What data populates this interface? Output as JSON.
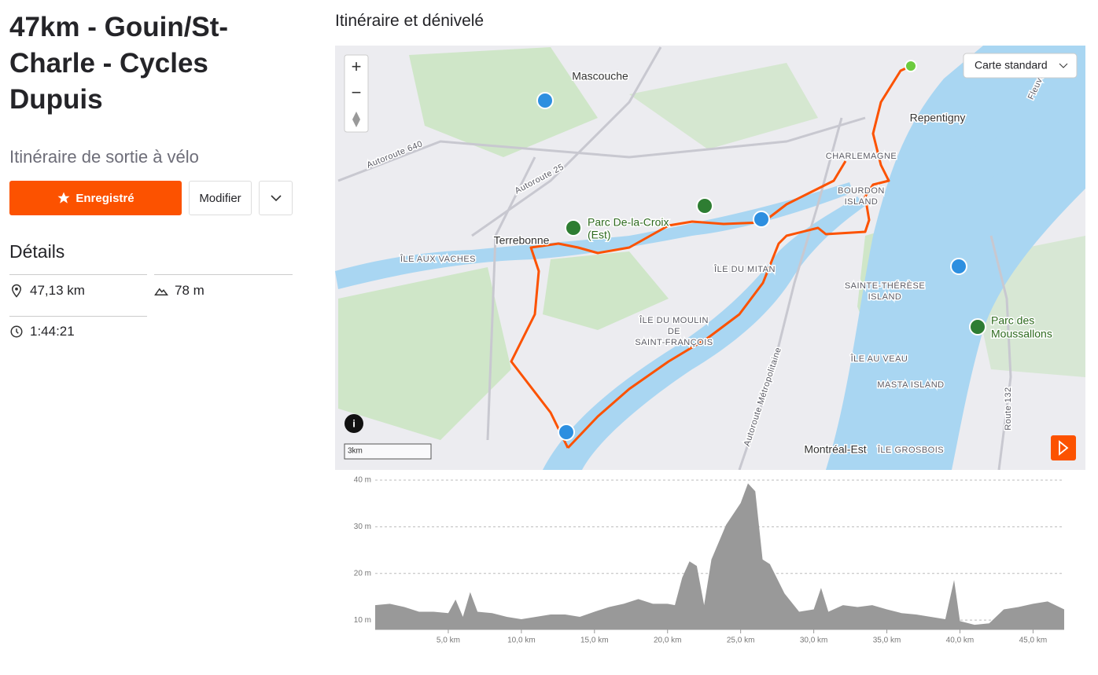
{
  "header": {
    "title": "47km - Gouin/St-Charle - Cycles Dupuis",
    "subtitle": "Itinéraire de sortie à vélo"
  },
  "actions": {
    "save": "Enregistré",
    "edit": "Modifier"
  },
  "details": {
    "heading": "Détails",
    "distance": "47,13 km",
    "elevation": "78 m",
    "duration": "1:44:21"
  },
  "map": {
    "heading": "Itinéraire et dénivelé",
    "layer": "Carte standard",
    "zoom_in": "+",
    "zoom_out": "−",
    "scale": "3km",
    "labels": [
      "Mascouche",
      "Repentigny",
      "CHARLEMAGNE",
      "BOURDON",
      "ISLAND",
      "Terrebonne",
      "ÎLE AUX VACHES",
      "ÎLE DU MITAN",
      "SAINTE-THÉRÈSE",
      "ISLAND",
      "ÎLE DU MOULIN",
      "DE",
      "SAINT-FRANÇOIS",
      "ÎLE AU VEAU",
      "MASTA ISLAND",
      "Montréal-Est",
      "ÎLE GROSBOIS",
      "Autoroute 640",
      "Autoroute 25",
      "Autoroute Métropolitaine",
      "Route 132",
      "Fleuve"
    ],
    "parks": [
      "Parc De-la-Croix",
      "(Est)",
      "Parc des",
      "Moussallons"
    ]
  },
  "chart_data": {
    "type": "area",
    "color": "#999999",
    "x": [
      0,
      1,
      2,
      3,
      4,
      5,
      5.5,
      6,
      6.5,
      7,
      8,
      9,
      10,
      11,
      12,
      13,
      14,
      15,
      16,
      17,
      18,
      19,
      20,
      20.5,
      21,
      21.5,
      22,
      22.5,
      23,
      24,
      25,
      25.5,
      26,
      26.5,
      27,
      28,
      29,
      30,
      30.5,
      31,
      32,
      33,
      34,
      35,
      36,
      37,
      38,
      39,
      39.6,
      40,
      41,
      42,
      43,
      44,
      45,
      46,
      47.13
    ],
    "values": [
      13.2,
      13.5,
      12.8,
      11.8,
      11.8,
      11.5,
      14.4,
      10.7,
      16,
      11.8,
      11.5,
      10.7,
      10.2,
      10.7,
      11.2,
      11.2,
      10.7,
      11.8,
      12.8,
      13.5,
      14.5,
      13.5,
      13.5,
      13.2,
      19.1,
      22.6,
      21.6,
      13.2,
      23,
      30.4,
      35.1,
      39.3,
      37.6,
      23,
      22,
      15.7,
      11.8,
      12.3,
      16.9,
      11.8,
      13.2,
      12.8,
      13.2,
      12.3,
      11.5,
      11.2,
      10.7,
      10.2,
      18.6,
      9.8,
      9,
      9.3,
      12.3,
      12.8,
      13.5,
      14,
      12.3
    ],
    "xlim": [
      0,
      47.13
    ],
    "ylim": [
      8,
      40
    ],
    "xticks": [
      {
        "value": 5,
        "label": "5,0 km"
      },
      {
        "value": 10,
        "label": "10,0 km"
      },
      {
        "value": 15,
        "label": "15,0 km"
      },
      {
        "value": 20,
        "label": "20,0 km"
      },
      {
        "value": 25,
        "label": "25,0 km"
      },
      {
        "value": 30,
        "label": "30,0 km"
      },
      {
        "value": 35,
        "label": "35,0 km"
      },
      {
        "value": 40,
        "label": "40,0 km"
      },
      {
        "value": 45,
        "label": "45,0 km"
      }
    ],
    "yticks": [
      {
        "value": 10,
        "label": "10 m"
      },
      {
        "value": 20,
        "label": "20 m"
      },
      {
        "value": 30,
        "label": "30 m"
      },
      {
        "value": 40,
        "label": "40 m"
      }
    ],
    "grid": true
  }
}
